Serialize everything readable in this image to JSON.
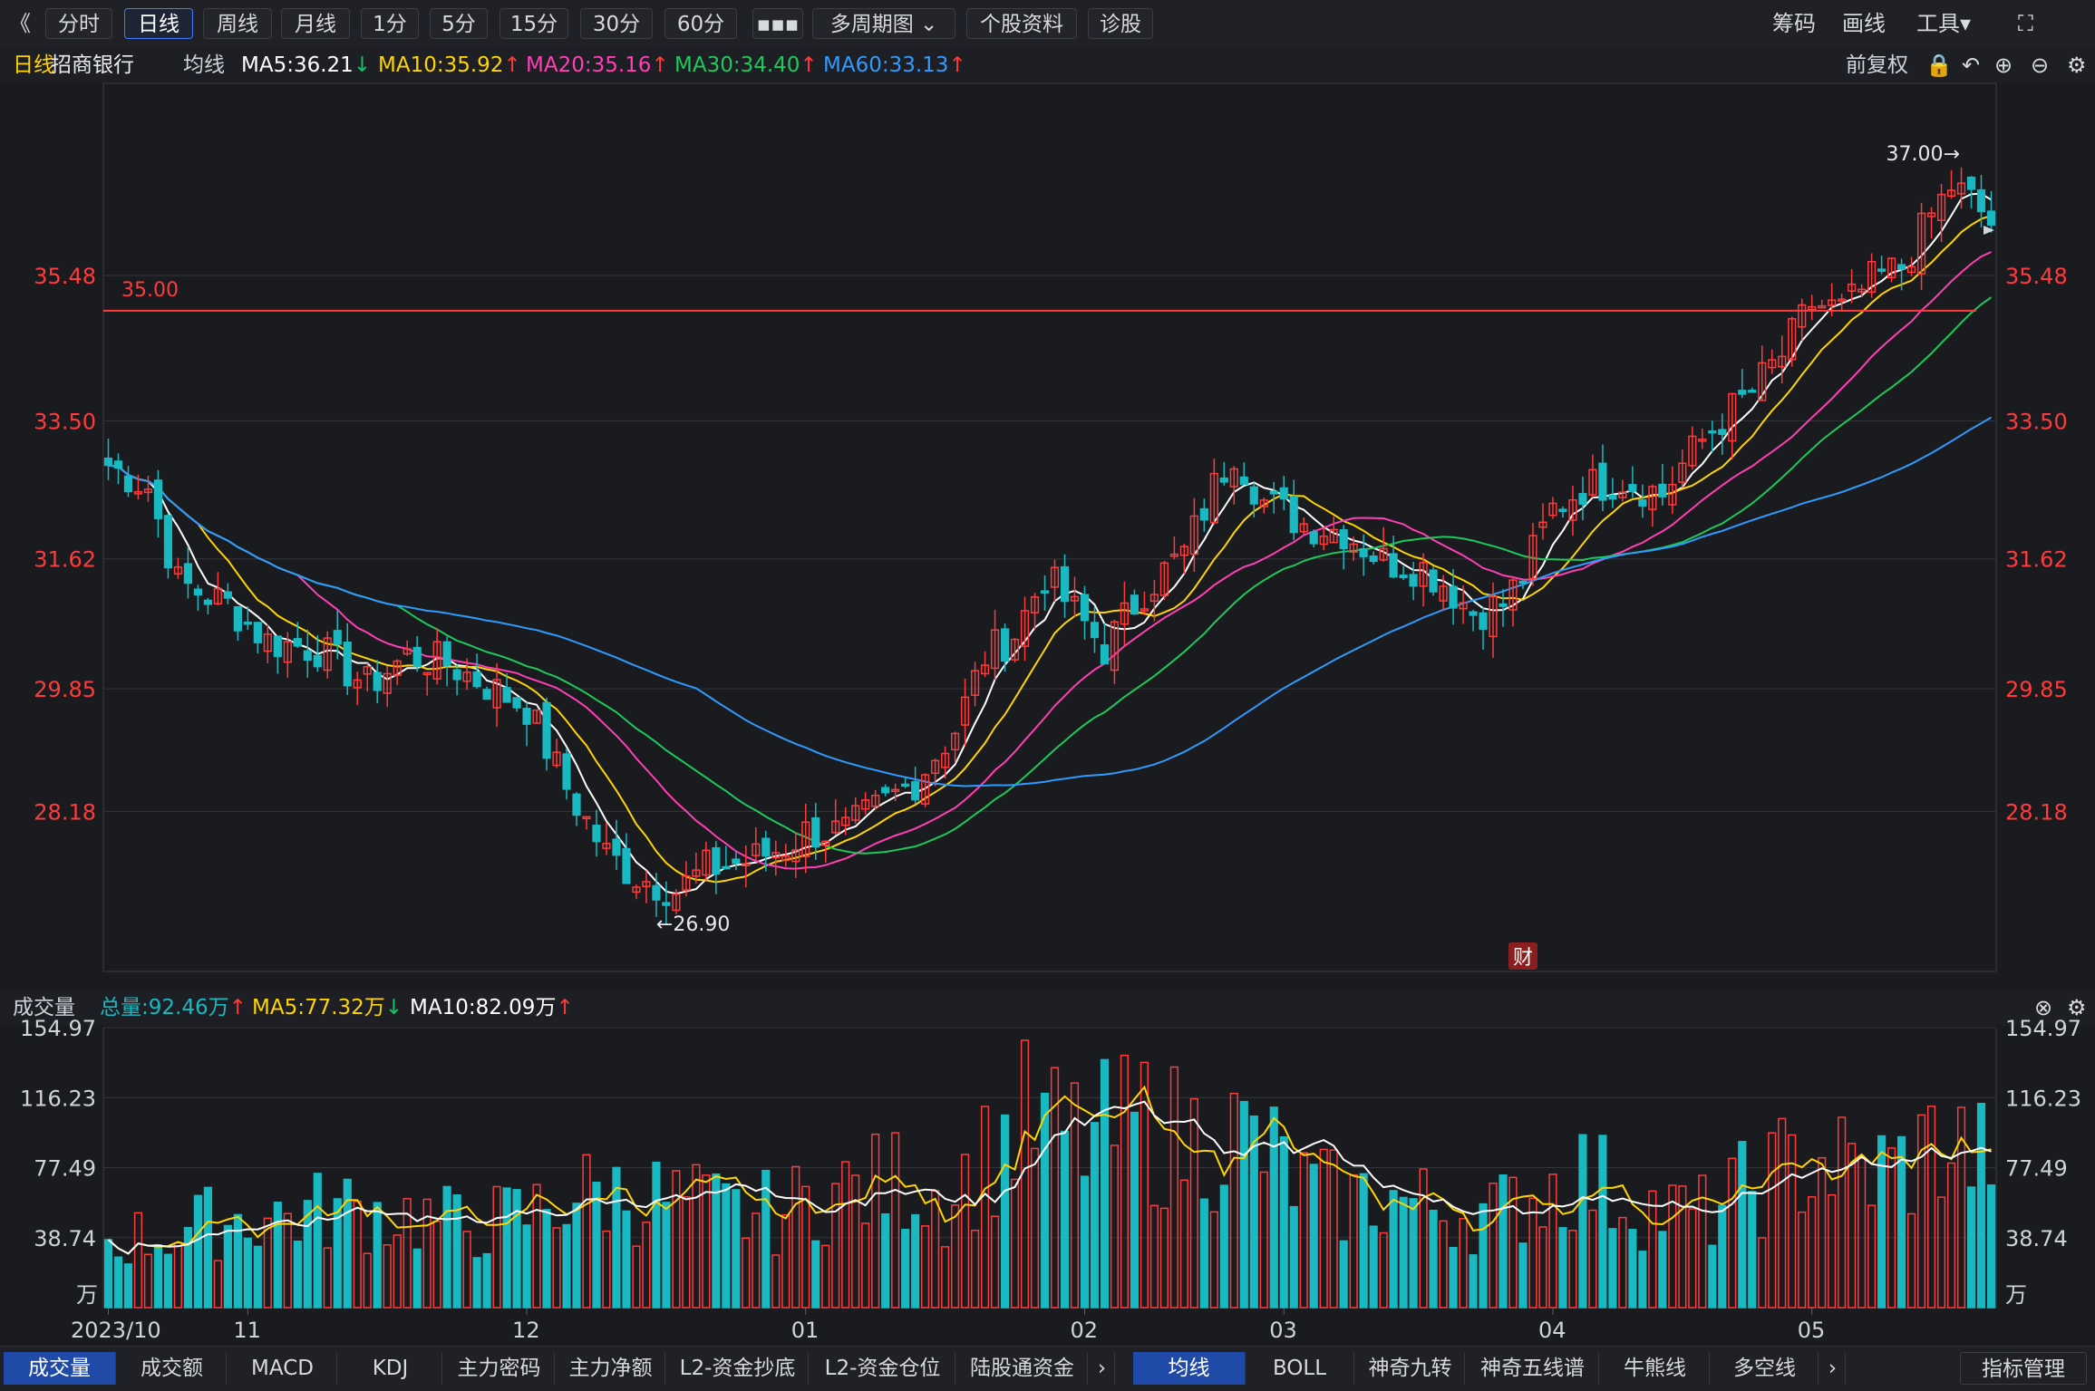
{
  "toolbar": {
    "back": "《",
    "buttons": [
      "分时",
      "日线",
      "周线",
      "月线",
      "1分",
      "5分",
      "15分",
      "30分",
      "60分",
      "▪▪▪",
      "多周期图 ⌄",
      "个股资料",
      "诊股"
    ],
    "active": "日线",
    "right": [
      "筹码",
      "画线",
      "工具▾",
      "⛶"
    ]
  },
  "legend": {
    "period": "日线",
    "stock_name": "招商银行",
    "ma_label": "均线",
    "ma": [
      {
        "text": "MA5:36.21",
        "arrow": "↓",
        "color": "#ffffff"
      },
      {
        "text": "MA10:35.92",
        "arrow": "↑",
        "color": "#ffd400"
      },
      {
        "text": "MA20:35.16",
        "arrow": "↑",
        "color": "#ff3fb4"
      },
      {
        "text": "MA30:34.40",
        "arrow": "↑",
        "color": "#1ec85a"
      },
      {
        "text": "MA60:33.13",
        "arrow": "↑",
        "color": "#2f9bff"
      }
    ],
    "adjust": "前复权"
  },
  "volume_legend": {
    "label": "成交量",
    "items": [
      {
        "text": "总量:92.46万",
        "arrow": "↑",
        "color": "#19b9c2"
      },
      {
        "text": "MA5:77.32万",
        "arrow": "↓",
        "color": "#ffd400"
      },
      {
        "text": "MA10:82.09万",
        "arrow": "↑",
        "color": "#ffffff"
      }
    ]
  },
  "chart_data": {
    "type": "candlestick",
    "title": "招商银行 日线",
    "price_axis": {
      "ticks": [
        "35.48",
        "33.50",
        "31.62",
        "29.85",
        "28.18"
      ],
      "ylim": [
        26.0,
        37.9
      ]
    },
    "volume_axis": {
      "ticks": [
        "154.97",
        "116.23",
        "77.49",
        "38.74"
      ],
      "unit": "万",
      "ylim": [
        0,
        155
      ]
    },
    "x_labels": [
      "2023/10",
      "11",
      "12",
      "01",
      "02",
      "03",
      "04",
      "05"
    ],
    "x_label_index": [
      0,
      14,
      42,
      70,
      98,
      118,
      145,
      171
    ],
    "horizontal_line": {
      "label": "35.00",
      "value": 35.0
    },
    "annotations": [
      {
        "text": "37.00→",
        "index": 185,
        "value": 37.0
      },
      {
        "text": "←26.90",
        "index": 55,
        "value": 26.9
      }
    ],
    "event_marker": {
      "text": "财",
      "index": 142
    },
    "price_key": [
      [
        0,
        32.9
      ],
      [
        4,
        32.6
      ],
      [
        7,
        31.3
      ],
      [
        12,
        31.0
      ],
      [
        16,
        30.5
      ],
      [
        21,
        30.4
      ],
      [
        26,
        29.9
      ],
      [
        30,
        30.3
      ],
      [
        34,
        30.2
      ],
      [
        38,
        29.9
      ],
      [
        42,
        29.6
      ],
      [
        46,
        28.5
      ],
      [
        50,
        27.6
      ],
      [
        53,
        27.3
      ],
      [
        57,
        27.1
      ],
      [
        60,
        27.4
      ],
      [
        64,
        27.5
      ],
      [
        68,
        27.7
      ],
      [
        70,
        27.9
      ],
      [
        74,
        27.9
      ],
      [
        78,
        28.3
      ],
      [
        81,
        28.6
      ],
      [
        85,
        29.3
      ],
      [
        88,
        30.3
      ],
      [
        91,
        30.6
      ],
      [
        94,
        31.4
      ],
      [
        97,
        30.9
      ],
      [
        100,
        30.4
      ],
      [
        104,
        31.2
      ],
      [
        108,
        31.7
      ],
      [
        111,
        32.6
      ],
      [
        113,
        33.1
      ],
      [
        116,
        32.4
      ],
      [
        120,
        32.1
      ],
      [
        124,
        32.0
      ],
      [
        128,
        31.6
      ],
      [
        132,
        31.5
      ],
      [
        134,
        31.3
      ],
      [
        137,
        30.9
      ],
      [
        140,
        31.0
      ],
      [
        142,
        31.4
      ],
      [
        145,
        32.3
      ],
      [
        148,
        32.6
      ],
      [
        152,
        32.7
      ],
      [
        156,
        32.5
      ],
      [
        158,
        32.9
      ],
      [
        161,
        33.4
      ],
      [
        165,
        33.9
      ],
      [
        168,
        34.4
      ],
      [
        171,
        35.1
      ],
      [
        174,
        35.0
      ],
      [
        177,
        35.4
      ],
      [
        180,
        35.6
      ],
      [
        183,
        36.3
      ],
      [
        185,
        36.7
      ],
      [
        187,
        36.5
      ],
      [
        189,
        36.2
      ]
    ],
    "volume_key": [
      [
        0,
        36
      ],
      [
        6,
        40
      ],
      [
        12,
        48
      ],
      [
        18,
        50
      ],
      [
        24,
        53
      ],
      [
        30,
        50
      ],
      [
        36,
        44
      ],
      [
        42,
        50
      ],
      [
        46,
        60
      ],
      [
        50,
        62
      ],
      [
        56,
        58
      ],
      [
        60,
        54
      ],
      [
        64,
        50
      ],
      [
        68,
        52
      ],
      [
        72,
        62
      ],
      [
        76,
        64
      ],
      [
        80,
        70
      ],
      [
        84,
        60
      ],
      [
        88,
        80
      ],
      [
        92,
        100
      ],
      [
        96,
        92
      ],
      [
        100,
        92
      ],
      [
        104,
        100
      ],
      [
        108,
        90
      ],
      [
        112,
        95
      ],
      [
        116,
        85
      ],
      [
        120,
        65
      ],
      [
        124,
        58
      ],
      [
        128,
        60
      ],
      [
        132,
        55
      ],
      [
        136,
        52
      ],
      [
        140,
        52
      ],
      [
        144,
        64
      ],
      [
        148,
        72
      ],
      [
        152,
        60
      ],
      [
        156,
        52
      ],
      [
        160,
        50
      ],
      [
        164,
        62
      ],
      [
        168,
        74
      ],
      [
        172,
        80
      ],
      [
        176,
        72
      ],
      [
        180,
        76
      ],
      [
        184,
        90
      ],
      [
        188,
        80
      ],
      [
        189,
        92
      ]
    ],
    "ma_series": [
      {
        "name": "MA5",
        "color": "#ffffff",
        "smooth": 2
      },
      {
        "name": "MA10",
        "color": "#ffd400",
        "smooth": 5
      },
      {
        "name": "MA20",
        "color": "#ff3fb4",
        "smooth": 10
      },
      {
        "name": "MA30",
        "color": "#1ec85a",
        "smooth": 15
      },
      {
        "name": "MA60",
        "color": "#2f9bff",
        "smooth": 30
      }
    ],
    "bar_count": 190,
    "up_color": "#ff3b3b",
    "down_color": "#19b9c2"
  },
  "bottom_tabs_left": [
    "成交量",
    "成交额",
    "MACD",
    "KDJ",
    "主力密码",
    "主力净额",
    "L2-资金抄底",
    "L2-资金仓位",
    "陆股通资金",
    "›"
  ],
  "bottom_tabs_right": [
    "均线",
    "BOLL",
    "神奇九转",
    "神奇五线谱",
    "牛熊线",
    "多空线",
    "›"
  ],
  "bottom_manage": "指标管理",
  "icons": {
    "lock": "🔒",
    "undo": "↶",
    "plus": "⊕",
    "minus": "⊖",
    "gear": "⚙",
    "close": "⊗"
  }
}
